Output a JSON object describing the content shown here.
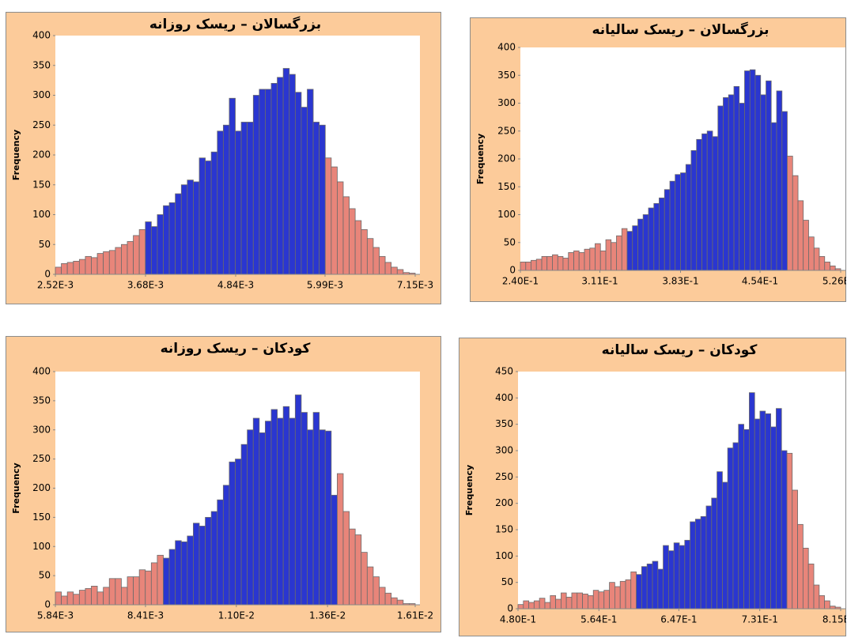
{
  "chart_data": [
    {
      "type": "histogram",
      "title": "بزرگسالان – ریسک روزانه",
      "ylabel": "Frequency",
      "bins": [
        0.00252,
        0.002597,
        0.002674,
        0.002752,
        0.002829,
        0.002906,
        0.002983,
        0.00306,
        0.003137,
        0.003215,
        0.003292,
        0.003369,
        0.003446,
        0.003523,
        0.0036,
        0.003678,
        0.003755,
        0.003832,
        0.003909,
        0.003986,
        0.004063,
        0.004141,
        0.004218,
        0.004295,
        0.004372,
        0.004449,
        0.004526,
        0.004604,
        0.004681,
        0.004758,
        0.004835,
        0.004912,
        0.004989,
        0.005067,
        0.005144,
        0.005221,
        0.005298,
        0.005375,
        0.005452,
        0.00553,
        0.005607,
        0.005684,
        0.005761,
        0.005838,
        0.005915,
        0.005993,
        0.00607,
        0.006147,
        0.006224,
        0.006301,
        0.006378,
        0.006456,
        0.006533,
        0.00661,
        0.006687,
        0.006764,
        0.006841,
        0.006919,
        0.006996,
        0.007073,
        0.00715
      ],
      "values": [
        12,
        18,
        20,
        22,
        25,
        30,
        28,
        35,
        38,
        40,
        45,
        50,
        55,
        65,
        75,
        88,
        80,
        100,
        115,
        120,
        135,
        150,
        158,
        155,
        195,
        190,
        205,
        240,
        250,
        295,
        240,
        255,
        255,
        300,
        310,
        310,
        320,
        330,
        345,
        335,
        305,
        280,
        310,
        255,
        250,
        195,
        180,
        155,
        130,
        110,
        90,
        75,
        60,
        45,
        30,
        20,
        12,
        8,
        3,
        2
      ],
      "colors": [
        "#e8857a",
        "#e8857a",
        "#e8857a",
        "#e8857a",
        "#e8857a",
        "#e8857a",
        "#e8857a",
        "#e8857a",
        "#e8857a",
        "#e8857a",
        "#e8857a",
        "#e8857a",
        "#e8857a",
        "#e8857a",
        "#e8857a",
        "#2a36d0",
        "#2a36d0",
        "#2a36d0",
        "#2a36d0",
        "#2a36d0",
        "#2a36d0",
        "#2a36d0",
        "#2a36d0",
        "#2a36d0",
        "#2a36d0",
        "#2a36d0",
        "#2a36d0",
        "#2a36d0",
        "#2a36d0",
        "#2a36d0",
        "#2a36d0",
        "#2a36d0",
        "#2a36d0",
        "#2a36d0",
        "#2a36d0",
        "#2a36d0",
        "#2a36d0",
        "#2a36d0",
        "#2a36d0",
        "#2a36d0",
        "#2a36d0",
        "#2a36d0",
        "#2a36d0",
        "#2a36d0",
        "#2a36d0",
        "#e8857a",
        "#e8857a",
        "#e8857a",
        "#e8857a",
        "#e8857a",
        "#e8857a",
        "#e8857a",
        "#e8857a",
        "#e8857a",
        "#e8857a",
        "#e8857a",
        "#e8857a",
        "#e8857a",
        "#e8857a",
        "#e8857a"
      ],
      "xlim": [
        0.00252,
        0.00715
      ],
      "xticks": [
        {
          "value": 0.00252,
          "label": "2.52E-3"
        },
        {
          "value": 0.00368,
          "label": "3.68E-3"
        },
        {
          "value": 0.00484,
          "label": "4.84E-3"
        },
        {
          "value": 0.00599,
          "label": "5.99E-3"
        },
        {
          "value": 0.00715,
          "label": "7.15E-3"
        }
      ],
      "ylim": [
        0,
        400
      ],
      "yticks": [
        0,
        50,
        100,
        150,
        200,
        250,
        300,
        350,
        400
      ]
    },
    {
      "type": "histogram",
      "title": "بزرگسالان – ریسک سالیانه",
      "ylabel": "Frequency",
      "bins": [
        0.24,
        0.2448,
        0.2495,
        0.2543,
        0.2591,
        0.2638,
        0.2686,
        0.2734,
        0.2781,
        0.2829,
        0.2877,
        0.2924,
        0.2972,
        0.302,
        0.3067,
        0.3115,
        0.3163,
        0.321,
        0.3258,
        0.3306,
        0.3353,
        0.3401,
        0.3449,
        0.3496,
        0.3544,
        0.3592,
        0.3639,
        0.3687,
        0.3735,
        0.3782,
        0.383,
        0.3878,
        0.3925,
        0.3973,
        0.4021,
        0.4068,
        0.4116,
        0.4164,
        0.4211,
        0.4259,
        0.4307,
        0.4354,
        0.4402,
        0.445,
        0.4497,
        0.4545,
        0.4593,
        0.464,
        0.4688,
        0.4736,
        0.4783,
        0.4831,
        0.4879,
        0.4926,
        0.4974,
        0.5022,
        0.5069,
        0.5117,
        0.5165,
        0.5212,
        0.526
      ],
      "values": [
        15,
        15,
        18,
        20,
        25,
        25,
        28,
        25,
        22,
        32,
        35,
        32,
        38,
        40,
        48,
        35,
        55,
        50,
        62,
        75,
        70,
        80,
        92,
        100,
        112,
        120,
        130,
        145,
        160,
        172,
        175,
        190,
        215,
        235,
        245,
        250,
        240,
        295,
        310,
        315,
        330,
        300,
        358,
        360,
        350,
        315,
        340,
        265,
        322,
        285,
        205,
        170,
        125,
        90,
        60,
        40,
        25,
        15,
        8,
        3
      ],
      "colors": [
        "#e8857a",
        "#e8857a",
        "#e8857a",
        "#e8857a",
        "#e8857a",
        "#e8857a",
        "#e8857a",
        "#e8857a",
        "#e8857a",
        "#e8857a",
        "#e8857a",
        "#e8857a",
        "#e8857a",
        "#e8857a",
        "#e8857a",
        "#e8857a",
        "#e8857a",
        "#e8857a",
        "#e8857a",
        "#e8857a",
        "#2a36d0",
        "#2a36d0",
        "#2a36d0",
        "#2a36d0",
        "#2a36d0",
        "#2a36d0",
        "#2a36d0",
        "#2a36d0",
        "#2a36d0",
        "#2a36d0",
        "#2a36d0",
        "#2a36d0",
        "#2a36d0",
        "#2a36d0",
        "#2a36d0",
        "#2a36d0",
        "#2a36d0",
        "#2a36d0",
        "#2a36d0",
        "#2a36d0",
        "#2a36d0",
        "#2a36d0",
        "#2a36d0",
        "#2a36d0",
        "#2a36d0",
        "#2a36d0",
        "#2a36d0",
        "#2a36d0",
        "#2a36d0",
        "#2a36d0",
        "#e8857a",
        "#e8857a",
        "#e8857a",
        "#e8857a",
        "#e8857a",
        "#e8857a",
        "#e8857a",
        "#e8857a",
        "#e8857a",
        "#e8857a"
      ],
      "xlim": [
        0.24,
        0.526
      ],
      "xticks": [
        {
          "value": 0.24,
          "label": "2.40E-1"
        },
        {
          "value": 0.311,
          "label": "3.11E-1"
        },
        {
          "value": 0.383,
          "label": "3.83E-1"
        },
        {
          "value": 0.454,
          "label": "4.54E-1"
        },
        {
          "value": 0.526,
          "label": "5.26E-1"
        }
      ],
      "ylim": [
        0,
        400
      ],
      "yticks": [
        0,
        50,
        100,
        150,
        200,
        250,
        300,
        350,
        400
      ]
    },
    {
      "type": "histogram",
      "title": "کودکان – ریسک روزانه",
      "ylabel": "Frequency",
      "bins": [
        0.00584,
        0.006011,
        0.006182,
        0.006353,
        0.006524,
        0.006695,
        0.006866,
        0.007037,
        0.007208,
        0.007379,
        0.00755,
        0.007721,
        0.007892,
        0.008063,
        0.008234,
        0.008405,
        0.008576,
        0.008747,
        0.008918,
        0.009089,
        0.00926,
        0.009431,
        0.009602,
        0.009773,
        0.009944,
        0.010115,
        0.010286,
        0.010457,
        0.010628,
        0.010799,
        0.01097,
        0.011141,
        0.011312,
        0.011483,
        0.011654,
        0.011825,
        0.011996,
        0.012167,
        0.012338,
        0.012509,
        0.01268,
        0.012851,
        0.013022,
        0.013193,
        0.013364,
        0.013535,
        0.013706,
        0.013877,
        0.014048,
        0.014219,
        0.01439,
        0.014561,
        0.014732,
        0.014903,
        0.015074,
        0.015245,
        0.015416,
        0.015587,
        0.015758,
        0.015929,
        0.0161
      ],
      "values": [
        22,
        15,
        22,
        18,
        25,
        28,
        32,
        22,
        30,
        45,
        45,
        30,
        48,
        48,
        60,
        58,
        72,
        85,
        80,
        95,
        110,
        108,
        118,
        140,
        135,
        150,
        160,
        180,
        205,
        245,
        250,
        275,
        300,
        320,
        295,
        315,
        335,
        320,
        340,
        320,
        360,
        330,
        300,
        330,
        300,
        298,
        188,
        225,
        160,
        130,
        120,
        90,
        65,
        48,
        30,
        20,
        12,
        8,
        2,
        2
      ],
      "colors": [
        "#e8857a",
        "#e8857a",
        "#e8857a",
        "#e8857a",
        "#e8857a",
        "#e8857a",
        "#e8857a",
        "#e8857a",
        "#e8857a",
        "#e8857a",
        "#e8857a",
        "#e8857a",
        "#e8857a",
        "#e8857a",
        "#e8857a",
        "#e8857a",
        "#e8857a",
        "#e8857a",
        "#2a36d0",
        "#2a36d0",
        "#2a36d0",
        "#2a36d0",
        "#2a36d0",
        "#2a36d0",
        "#2a36d0",
        "#2a36d0",
        "#2a36d0",
        "#2a36d0",
        "#2a36d0",
        "#2a36d0",
        "#2a36d0",
        "#2a36d0",
        "#2a36d0",
        "#2a36d0",
        "#2a36d0",
        "#2a36d0",
        "#2a36d0",
        "#2a36d0",
        "#2a36d0",
        "#2a36d0",
        "#2a36d0",
        "#2a36d0",
        "#2a36d0",
        "#2a36d0",
        "#2a36d0",
        "#2a36d0",
        "#2a36d0",
        "#e8857a",
        "#e8857a",
        "#e8857a",
        "#e8857a",
        "#e8857a",
        "#e8857a",
        "#e8857a",
        "#e8857a",
        "#e8857a",
        "#e8857a",
        "#e8857a",
        "#e8857a",
        "#e8857a"
      ],
      "xlim": [
        0.00584,
        0.0161
      ],
      "xticks": [
        {
          "value": 0.00584,
          "label": "5.84E-3"
        },
        {
          "value": 0.00841,
          "label": "8.41E-3"
        },
        {
          "value": 0.011,
          "label": "1.10E-2"
        },
        {
          "value": 0.0136,
          "label": "1.36E-2"
        },
        {
          "value": 0.0161,
          "label": "1.61E-2"
        }
      ],
      "ylim": [
        0,
        400
      ],
      "yticks": [
        0,
        50,
        100,
        150,
        200,
        250,
        300,
        350,
        400
      ]
    },
    {
      "type": "histogram",
      "title": "کودکان – ریسک سالیانه",
      "ylabel": "Frequency",
      "bins": [
        0.48,
        0.4856,
        0.4912,
        0.4967,
        0.5023,
        0.5079,
        0.5135,
        0.5191,
        0.5247,
        0.5302,
        0.5358,
        0.5414,
        0.547,
        0.5526,
        0.5582,
        0.5637,
        0.5693,
        0.5749,
        0.5805,
        0.5861,
        0.5917,
        0.5972,
        0.6028,
        0.6084,
        0.614,
        0.6196,
        0.6252,
        0.6307,
        0.6363,
        0.6419,
        0.6475,
        0.6531,
        0.6587,
        0.6642,
        0.6698,
        0.6754,
        0.681,
        0.6866,
        0.6922,
        0.6977,
        0.7033,
        0.7089,
        0.7145,
        0.7201,
        0.7257,
        0.7312,
        0.7368,
        0.7424,
        0.748,
        0.7536,
        0.7592,
        0.7647,
        0.7703,
        0.7759,
        0.7815,
        0.7871,
        0.7927,
        0.7982,
        0.8038,
        0.8094,
        0.815
      ],
      "values": [
        8,
        15,
        12,
        15,
        20,
        12,
        25,
        18,
        30,
        22,
        30,
        30,
        28,
        25,
        35,
        32,
        35,
        50,
        42,
        52,
        55,
        70,
        65,
        80,
        85,
        90,
        75,
        120,
        110,
        125,
        120,
        130,
        165,
        170,
        175,
        195,
        210,
        260,
        240,
        305,
        315,
        350,
        340,
        410,
        360,
        375,
        370,
        345,
        380,
        300,
        295,
        225,
        160,
        115,
        85,
        45,
        25,
        15,
        5,
        3
      ],
      "colors": [
        "#e8857a",
        "#e8857a",
        "#e8857a",
        "#e8857a",
        "#e8857a",
        "#e8857a",
        "#e8857a",
        "#e8857a",
        "#e8857a",
        "#e8857a",
        "#e8857a",
        "#e8857a",
        "#e8857a",
        "#e8857a",
        "#e8857a",
        "#e8857a",
        "#e8857a",
        "#e8857a",
        "#e8857a",
        "#e8857a",
        "#e8857a",
        "#e8857a",
        "#2a36d0",
        "#2a36d0",
        "#2a36d0",
        "#2a36d0",
        "#2a36d0",
        "#2a36d0",
        "#2a36d0",
        "#2a36d0",
        "#2a36d0",
        "#2a36d0",
        "#2a36d0",
        "#2a36d0",
        "#2a36d0",
        "#2a36d0",
        "#2a36d0",
        "#2a36d0",
        "#2a36d0",
        "#2a36d0",
        "#2a36d0",
        "#2a36d0",
        "#2a36d0",
        "#2a36d0",
        "#2a36d0",
        "#2a36d0",
        "#2a36d0",
        "#2a36d0",
        "#2a36d0",
        "#2a36d0",
        "#e8857a",
        "#e8857a",
        "#e8857a",
        "#e8857a",
        "#e8857a",
        "#e8857a",
        "#e8857a",
        "#e8857a",
        "#e8857a",
        "#e8857a"
      ],
      "xlim": [
        0.48,
        0.815
      ],
      "xticks": [
        {
          "value": 0.48,
          "label": "4.80E-1"
        },
        {
          "value": 0.564,
          "label": "5.64E-1"
        },
        {
          "value": 0.647,
          "label": "6.47E-1"
        },
        {
          "value": 0.731,
          "label": "7.31E-1"
        },
        {
          "value": 0.815,
          "label": "8.15E-1"
        }
      ],
      "ylim": [
        0,
        450
      ],
      "yticks": [
        0,
        50,
        100,
        150,
        200,
        250,
        300,
        350,
        400,
        450
      ]
    }
  ]
}
